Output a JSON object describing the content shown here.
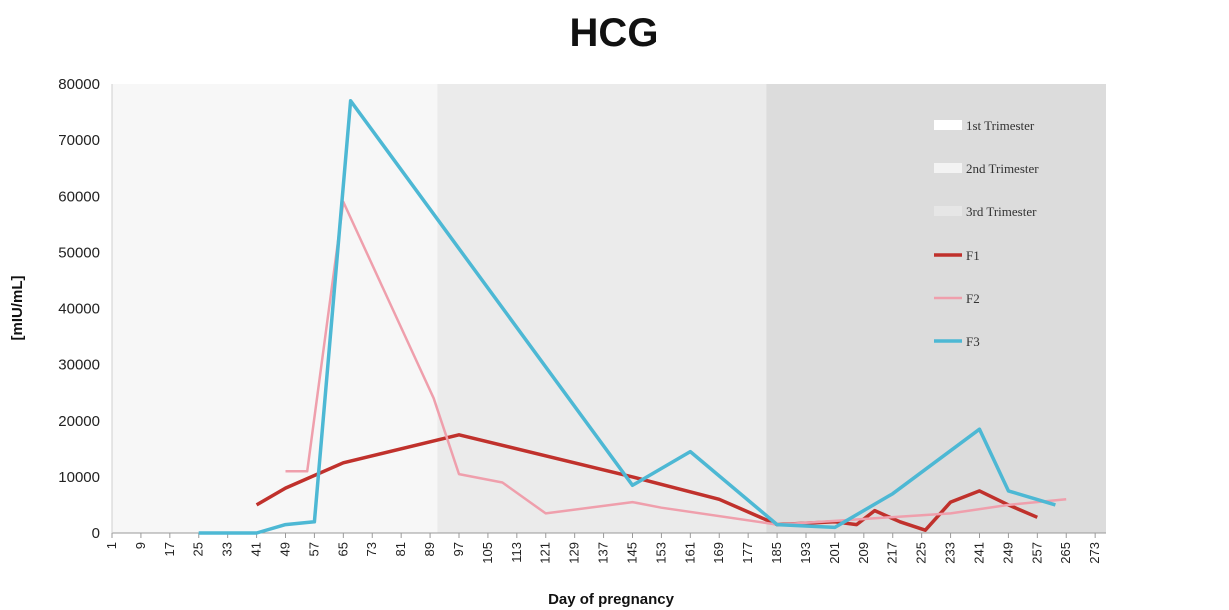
{
  "chart_data": {
    "type": "line",
    "title": "HCG",
    "xlabel": "Day of pregnancy",
    "ylabel": "[mIU/mL]",
    "ylim": [
      0,
      80000
    ],
    "yticks": [
      "0",
      "10000",
      "20000",
      "30000",
      "40000",
      "50000",
      "60000",
      "70000",
      "80000"
    ],
    "categories": [
      "1",
      "9",
      "17",
      "25",
      "33",
      "41",
      "49",
      "57",
      "65",
      "73",
      "81",
      "89",
      "97",
      "105",
      "113",
      "121",
      "129",
      "137",
      "145",
      "153",
      "161",
      "169",
      "177",
      "185",
      "193",
      "201",
      "209",
      "217",
      "225",
      "233",
      "241",
      "249",
      "257",
      "265",
      "273"
    ],
    "trimesters": [
      {
        "name": "1st Trimester",
        "start": 1,
        "end": 91,
        "color": "#f7f7f7"
      },
      {
        "name": "2nd Trimester",
        "start": 91,
        "end": 182,
        "color": "#ebebeb"
      },
      {
        "name": "3rd Trimester",
        "start": 182,
        "end": 276,
        "color": "#dcdcdc"
      }
    ],
    "series": [
      {
        "name": "F1",
        "color": "#c0312c",
        "points": [
          [
            41,
            5000
          ],
          [
            49,
            8000
          ],
          [
            65,
            12500
          ],
          [
            97,
            17500
          ],
          [
            145,
            10000
          ],
          [
            169,
            6000
          ],
          [
            185,
            1500
          ],
          [
            201,
            2000
          ],
          [
            207,
            1500
          ],
          [
            212,
            4000
          ],
          [
            219,
            2000
          ],
          [
            226,
            500
          ],
          [
            233,
            5500
          ],
          [
            241,
            7500
          ],
          [
            249,
            5000
          ],
          [
            257,
            2800
          ]
        ]
      },
      {
        "name": "F2",
        "color": "#ef9fac",
        "points": [
          [
            49,
            11000
          ],
          [
            55,
            11000
          ],
          [
            65,
            59000
          ],
          [
            90,
            24000
          ],
          [
            97,
            10500
          ],
          [
            109,
            9000
          ],
          [
            121,
            3500
          ],
          [
            145,
            5500
          ],
          [
            153,
            4500
          ],
          [
            185,
            1500
          ],
          [
            209,
            2500
          ],
          [
            233,
            3500
          ],
          [
            249,
            5000
          ],
          [
            265,
            6000
          ]
        ]
      },
      {
        "name": "F3",
        "color": "#4db8d4",
        "points": [
          [
            25,
            0
          ],
          [
            41,
            0
          ],
          [
            49,
            1500
          ],
          [
            57,
            2000
          ],
          [
            67,
            77000
          ],
          [
            145,
            8500
          ],
          [
            161,
            14500
          ],
          [
            185,
            1500
          ],
          [
            201,
            1000
          ],
          [
            217,
            7000
          ],
          [
            241,
            18500
          ],
          [
            249,
            7500
          ],
          [
            262,
            5000
          ]
        ]
      }
    ],
    "legend_position": "right"
  }
}
